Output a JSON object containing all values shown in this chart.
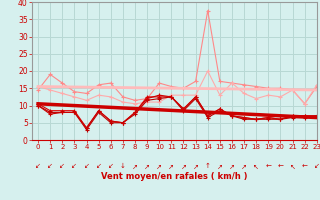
{
  "background_color": "#d6f0ee",
  "grid_color": "#b8d8d4",
  "xlabel": "Vent moyen/en rafales ( km/h )",
  "xlabel_color": "#cc0000",
  "tick_color": "#cc0000",
  "xlim": [
    -0.5,
    23
  ],
  "ylim": [
    0,
    40
  ],
  "yticks": [
    0,
    5,
    10,
    15,
    20,
    25,
    30,
    35,
    40
  ],
  "xticks": [
    0,
    1,
    2,
    3,
    4,
    5,
    6,
    7,
    8,
    9,
    10,
    11,
    12,
    13,
    14,
    15,
    16,
    17,
    18,
    19,
    20,
    21,
    22,
    23
  ],
  "x": [
    0,
    1,
    2,
    3,
    4,
    5,
    6,
    7,
    8,
    9,
    10,
    11,
    12,
    13,
    14,
    15,
    16,
    17,
    18,
    19,
    20,
    21,
    22,
    23
  ],
  "line_pink1": [
    14.5,
    19.0,
    16.5,
    14.0,
    13.5,
    16.0,
    16.5,
    12.5,
    11.5,
    12.0,
    16.5,
    15.5,
    15.0,
    17.0,
    37.5,
    17.0,
    16.5,
    16.0,
    15.5,
    15.0,
    15.0,
    14.5,
    10.5,
    15.5
  ],
  "line_pink2": [
    15.5,
    14.5,
    13.5,
    12.5,
    11.5,
    13.0,
    12.5,
    11.0,
    10.5,
    11.0,
    11.0,
    13.0,
    13.0,
    13.0,
    20.0,
    13.0,
    16.5,
    13.5,
    12.0,
    13.0,
    12.5,
    14.5,
    10.5,
    16.0
  ],
  "line_pink_trend_x": [
    0,
    23
  ],
  "line_pink_trend_y": [
    15.5,
    14.5
  ],
  "line_dark1": [
    10.5,
    8.5,
    8.5,
    8.5,
    3.5,
    8.5,
    5.5,
    5.0,
    8.0,
    12.5,
    12.5,
    12.5,
    9.0,
    12.5,
    7.0,
    9.0,
    7.0,
    6.5,
    6.0,
    6.5,
    6.0,
    7.0,
    7.0,
    7.0
  ],
  "line_dark2": [
    10.0,
    8.0,
    8.0,
    8.0,
    3.0,
    8.0,
    5.0,
    5.0,
    7.5,
    11.5,
    12.0,
    12.5,
    8.5,
    12.0,
    6.5,
    8.5,
    7.0,
    6.0,
    6.0,
    6.0,
    6.0,
    6.5,
    6.5,
    7.0
  ],
  "line_dark3": [
    10.0,
    7.5,
    8.0,
    8.0,
    3.5,
    8.5,
    5.5,
    5.0,
    8.0,
    12.0,
    13.0,
    12.5,
    9.0,
    12.5,
    7.0,
    9.0,
    7.0,
    6.5,
    6.0,
    6.5,
    6.0,
    7.0,
    7.0,
    7.0
  ],
  "line_trend_x": [
    0,
    23
  ],
  "line_trend_y": [
    10.5,
    6.5
  ],
  "wind_arrows": [
    "SW",
    "SW",
    "SW",
    "SW",
    "SW",
    "SW",
    "SW",
    "S",
    "NE",
    "NE",
    "NE",
    "NE",
    "NE",
    "NE",
    "N",
    "NE",
    "NE",
    "NE",
    "NW",
    "W",
    "W",
    "NW",
    "W",
    "SW"
  ]
}
